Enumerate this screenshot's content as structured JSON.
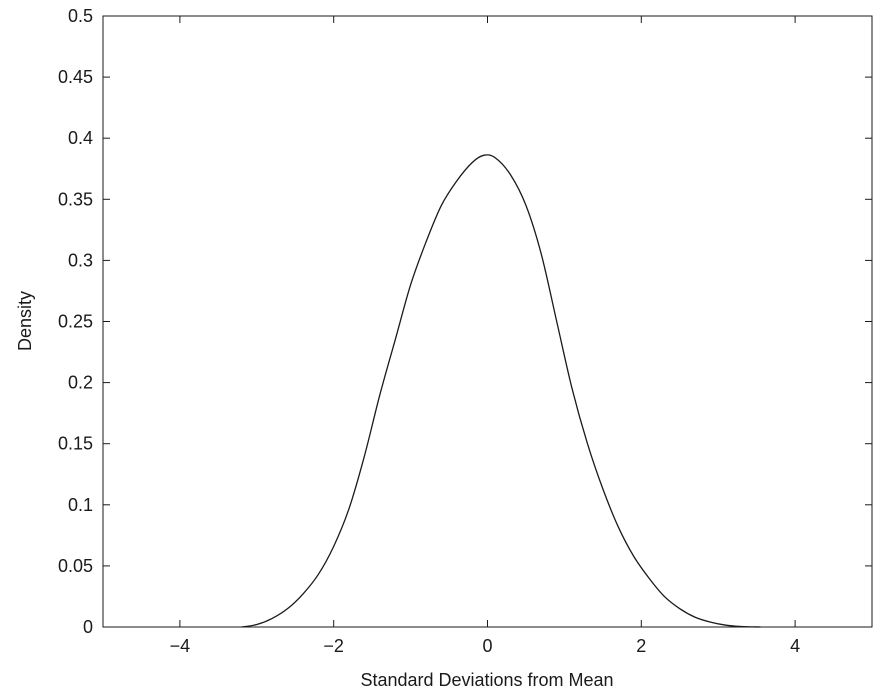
{
  "chart_data": {
    "type": "line",
    "title": "",
    "xlabel": "Standard Deviations from Mean",
    "ylabel": "Density",
    "xlim": [
      -5,
      5
    ],
    "ylim": [
      0,
      0.5
    ],
    "x_ticks": [
      -4,
      -2,
      0,
      2,
      4
    ],
    "x_tick_labels": [
      "−4",
      "−2",
      "0",
      "2",
      "4"
    ],
    "y_ticks": [
      0,
      0.05,
      0.1,
      0.15,
      0.2,
      0.25,
      0.3,
      0.35,
      0.4,
      0.45,
      0.5
    ],
    "y_tick_labels": [
      "0",
      "0.05",
      "0.1",
      "0.15",
      "0.2",
      "0.25",
      "0.3",
      "0.35",
      "0.4",
      "0.45",
      "0.5"
    ],
    "grid": false,
    "legend": "none",
    "line_color": "#1a1a1a",
    "series": [
      {
        "x": [
          -3.2,
          -3.0,
          -2.8,
          -2.6,
          -2.4,
          -2.2,
          -2.0,
          -1.8,
          -1.6,
          -1.4,
          -1.2,
          -1.0,
          -0.8,
          -0.6,
          -0.4,
          -0.2,
          -0.05,
          0.1,
          0.3,
          0.5,
          0.7,
          0.9,
          1.1,
          1.3,
          1.5,
          1.7,
          1.9,
          2.1,
          2.3,
          2.5,
          2.7,
          2.9,
          3.1,
          3.3,
          3.55
        ],
        "y": [
          0.0,
          0.002,
          0.007,
          0.015,
          0.027,
          0.043,
          0.066,
          0.097,
          0.14,
          0.19,
          0.235,
          0.28,
          0.315,
          0.345,
          0.365,
          0.38,
          0.386,
          0.384,
          0.37,
          0.345,
          0.305,
          0.25,
          0.195,
          0.15,
          0.113,
          0.082,
          0.058,
          0.04,
          0.025,
          0.015,
          0.008,
          0.004,
          0.0015,
          0.0004,
          0.0
        ]
      }
    ]
  }
}
